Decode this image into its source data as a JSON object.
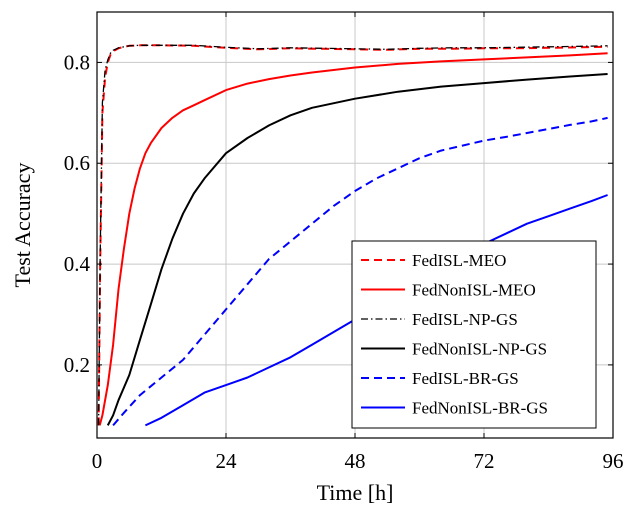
{
  "chart_data": {
    "type": "line",
    "xlabel": "Time [h]",
    "ylabel": "Test Accuracy",
    "xlim": [
      0,
      96
    ],
    "ylim": [
      0.055,
      0.9
    ],
    "xticks": [
      0,
      24,
      48,
      72,
      96
    ],
    "yticks": [
      0.2,
      0.4,
      0.6,
      0.8
    ],
    "xtick_labels": [
      "0",
      "24",
      "48",
      "72",
      "96"
    ],
    "ytick_labels": [
      "0.2",
      "0.4",
      "0.6",
      "0.8"
    ],
    "grid": true,
    "legend_position": "bottom-right",
    "series": [
      {
        "name": "FedISL-MEO",
        "color": "#ff0000",
        "dash": "dashed",
        "x": [
          0.3,
          0.6,
          1.0,
          1.5,
          2.0,
          2.5,
          3.0,
          4.0,
          5.0,
          6.0,
          8.0,
          12.0,
          18.0,
          24.0,
          30.0,
          36.0,
          42.0,
          48.0,
          54.0,
          60.0,
          66.0,
          72.0,
          78.0,
          84.0,
          90.0,
          95.0
        ],
        "y": [
          0.08,
          0.4,
          0.7,
          0.77,
          0.8,
          0.815,
          0.822,
          0.828,
          0.831,
          0.833,
          0.834,
          0.834,
          0.833,
          0.829,
          0.826,
          0.828,
          0.827,
          0.826,
          0.825,
          0.827,
          0.827,
          0.828,
          0.828,
          0.829,
          0.83,
          0.831
        ]
      },
      {
        "name": "FedNonISL-MEO",
        "color": "#ff0000",
        "dash": "solid",
        "x": [
          0.5,
          1.0,
          2.0,
          3.0,
          4.0,
          5.0,
          6.0,
          7.0,
          8.0,
          9.0,
          10.0,
          12.0,
          14.0,
          16.0,
          18.0,
          20.0,
          24.0,
          28.0,
          32.0,
          36.0,
          40.0,
          48.0,
          56.0,
          64.0,
          72.0,
          80.0,
          88.0,
          95.0
        ],
        "y": [
          0.08,
          0.1,
          0.16,
          0.24,
          0.35,
          0.43,
          0.5,
          0.55,
          0.59,
          0.62,
          0.64,
          0.67,
          0.69,
          0.705,
          0.715,
          0.725,
          0.745,
          0.758,
          0.767,
          0.774,
          0.78,
          0.79,
          0.797,
          0.802,
          0.806,
          0.81,
          0.814,
          0.818
        ]
      },
      {
        "name": "FedISL-NP-GS",
        "color": "#000000",
        "dash": "dashdot",
        "x": [
          0.3,
          0.6,
          1.0,
          1.5,
          2.0,
          2.5,
          3.0,
          4.0,
          5.0,
          6.0,
          8.0,
          12.0,
          18.0,
          24.0,
          30.0,
          36.0,
          42.0,
          48.0,
          54.0,
          60.0,
          66.0,
          72.0,
          78.0,
          84.0,
          90.0,
          95.0
        ],
        "y": [
          0.08,
          0.42,
          0.72,
          0.785,
          0.805,
          0.818,
          0.824,
          0.829,
          0.831,
          0.833,
          0.834,
          0.834,
          0.834,
          0.83,
          0.827,
          0.829,
          0.828,
          0.827,
          0.826,
          0.828,
          0.829,
          0.829,
          0.83,
          0.831,
          0.832,
          0.833
        ]
      },
      {
        "name": "FedNonISL-NP-GS",
        "color": "#000000",
        "dash": "solid",
        "x": [
          2.0,
          3.0,
          4.0,
          5.0,
          6.0,
          8.0,
          10.0,
          12.0,
          14.0,
          16.0,
          18.0,
          20.0,
          24.0,
          28.0,
          32.0,
          36.0,
          40.0,
          48.0,
          56.0,
          64.0,
          72.0,
          80.0,
          88.0,
          95.0
        ],
        "y": [
          0.08,
          0.1,
          0.13,
          0.155,
          0.18,
          0.25,
          0.32,
          0.39,
          0.45,
          0.5,
          0.54,
          0.57,
          0.62,
          0.65,
          0.675,
          0.695,
          0.71,
          0.728,
          0.742,
          0.752,
          0.759,
          0.766,
          0.772,
          0.777
        ]
      },
      {
        "name": "FedISL-BR-GS",
        "color": "#0000ff",
        "dash": "dashed",
        "x": [
          3.0,
          5.0,
          8.0,
          12.0,
          16.0,
          20.0,
          24.0,
          28.0,
          32.0,
          36.0,
          40.0,
          44.0,
          48.0,
          52.0,
          56.0,
          60.0,
          64.0,
          68.0,
          72.0,
          76.0,
          80.0,
          84.0,
          88.0,
          92.0,
          95.0
        ],
        "y": [
          0.08,
          0.105,
          0.14,
          0.175,
          0.21,
          0.26,
          0.31,
          0.36,
          0.41,
          0.445,
          0.48,
          0.515,
          0.545,
          0.57,
          0.59,
          0.61,
          0.625,
          0.635,
          0.645,
          0.652,
          0.66,
          0.668,
          0.676,
          0.683,
          0.69
        ]
      },
      {
        "name": "FedNonISL-BR-GS",
        "color": "#0000ff",
        "dash": "solid",
        "x": [
          9.0,
          12.0,
          16.0,
          20.0,
          24.0,
          28.0,
          32.0,
          36.0,
          40.0,
          44.0,
          48.0,
          52.0,
          56.0,
          60.0,
          64.0,
          68.0,
          72.0,
          76.0,
          80.0,
          84.0,
          88.0,
          92.0,
          95.0
        ],
        "y": [
          0.08,
          0.095,
          0.12,
          0.145,
          0.16,
          0.175,
          0.195,
          0.215,
          0.24,
          0.265,
          0.29,
          0.315,
          0.34,
          0.365,
          0.39,
          0.415,
          0.44,
          0.46,
          0.48,
          0.495,
          0.51,
          0.525,
          0.537
        ]
      }
    ]
  }
}
